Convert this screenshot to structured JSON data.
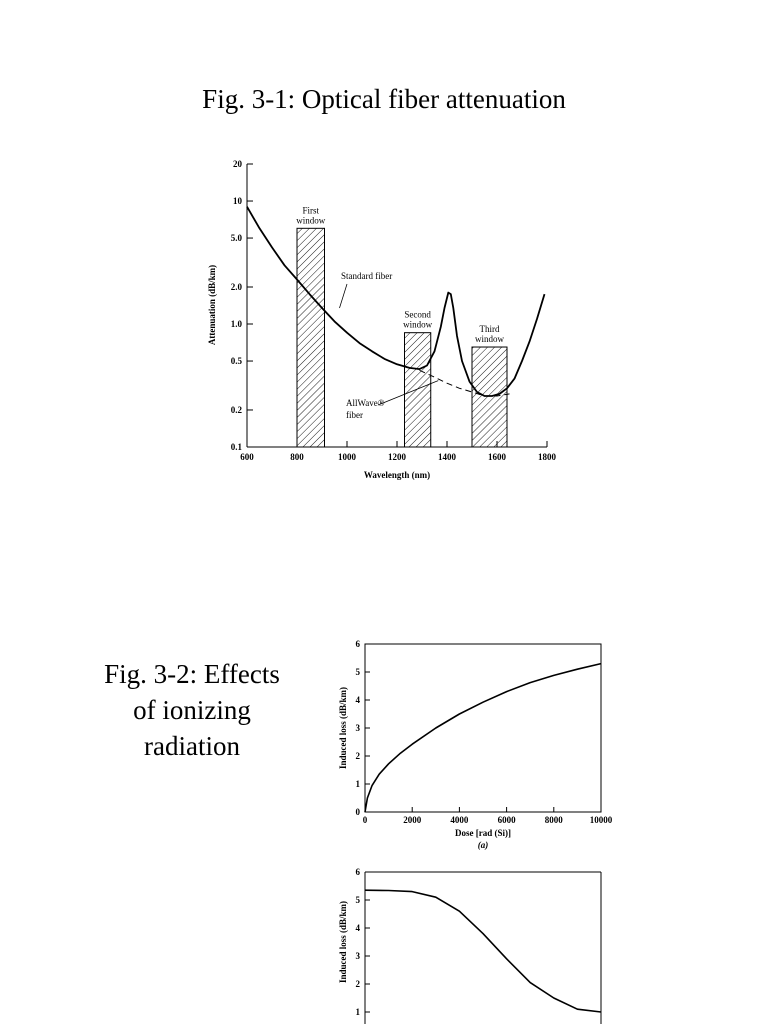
{
  "fig1": {
    "title": "Fig. 3-1: Optical fiber attenuation"
  },
  "fig2": {
    "title_lines": [
      "Fig. 3-2: Effects",
      "of ionizing",
      "radiation"
    ]
  },
  "chart_data": [
    {
      "type": "line",
      "xlabel": "Wavelength (nm)",
      "ylabel": "Attenuation (dB/km)",
      "xlim": [
        600,
        1800
      ],
      "ylim": [
        0.1,
        20
      ],
      "yscale": "log",
      "xticks": [
        600,
        800,
        1000,
        1200,
        1400,
        1600,
        1800
      ],
      "yticks": [
        0.1,
        0.2,
        0.5,
        1.0,
        2.0,
        5.0,
        10,
        20
      ],
      "ytick_labels": [
        "0.1",
        "0.2",
        "0.5",
        "1.0",
        "2.0",
        "5.0",
        "10",
        "20"
      ],
      "windows": [
        {
          "label": [
            "First",
            "window"
          ],
          "x0": 800,
          "x1": 910,
          "ytop": 6.0
        },
        {
          "label": [
            "Second",
            "window"
          ],
          "x0": 1230,
          "x1": 1335,
          "ytop": 0.85
        },
        {
          "label": [
            "Third",
            "window"
          ],
          "x0": 1500,
          "x1": 1640,
          "ytop": 0.65
        }
      ],
      "series": [
        {
          "name": "Standard fiber",
          "style": "solid",
          "x": [
            600,
            650,
            700,
            750,
            800,
            850,
            900,
            950,
            1000,
            1050,
            1100,
            1150,
            1200,
            1250,
            1290,
            1320,
            1350,
            1375,
            1390,
            1405,
            1415,
            1425,
            1440,
            1460,
            1490,
            1520,
            1550,
            1580,
            1610,
            1640,
            1670,
            1700,
            1730,
            1760,
            1790
          ],
          "y": [
            9.0,
            6.0,
            4.2,
            3.0,
            2.3,
            1.75,
            1.35,
            1.05,
            0.85,
            0.7,
            0.6,
            0.52,
            0.47,
            0.44,
            0.43,
            0.46,
            0.6,
            0.95,
            1.35,
            1.8,
            1.75,
            1.35,
            0.8,
            0.5,
            0.34,
            0.28,
            0.26,
            0.26,
            0.27,
            0.3,
            0.36,
            0.5,
            0.72,
            1.1,
            1.75
          ]
        },
        {
          "name": "AllWave® fiber",
          "style": "dashed",
          "x": [
            1290,
            1350,
            1400,
            1450,
            1500,
            1550,
            1600,
            1650
          ],
          "y": [
            0.42,
            0.37,
            0.33,
            0.3,
            0.28,
            0.26,
            0.26,
            0.27
          ]
        }
      ],
      "annotations": [
        {
          "text": [
            "Standard fiber"
          ],
          "target_x": 970,
          "target_y": 1.4
        },
        {
          "text": [
            "AllWave®",
            "fiber"
          ],
          "target_x": 1365,
          "target_y": 0.36
        }
      ]
    },
    {
      "type": "line",
      "xlabel": "Dose [rad (Si)]",
      "ylabel": "Induced loss (dB/km)",
      "sublabel": "(a)",
      "xlim": [
        0,
        10000
      ],
      "ylim": [
        0,
        6
      ],
      "xticks": [
        0,
        2000,
        4000,
        6000,
        8000,
        10000
      ],
      "yticks": [
        0,
        1,
        2,
        3,
        4,
        5,
        6
      ],
      "series": [
        {
          "name": "",
          "x": [
            0,
            100,
            300,
            600,
            1000,
            1500,
            2000,
            3000,
            4000,
            5000,
            6000,
            7000,
            8000,
            9000,
            10000
          ],
          "y": [
            0,
            0.5,
            0.95,
            1.35,
            1.72,
            2.1,
            2.42,
            3.0,
            3.5,
            3.92,
            4.3,
            4.62,
            4.88,
            5.1,
            5.3
          ]
        }
      ]
    },
    {
      "type": "line",
      "ylabel": "Induced loss (dB/km)",
      "ylim": [
        0,
        6
      ],
      "yticks": [
        1,
        2,
        3,
        4,
        5,
        6
      ],
      "xlim": [
        0,
        1
      ],
      "series": [
        {
          "name": "",
          "x": [
            0,
            0.1,
            0.2,
            0.3,
            0.4,
            0.5,
            0.6,
            0.7,
            0.8,
            0.9,
            1.0
          ],
          "y": [
            5.35,
            5.34,
            5.3,
            5.1,
            4.6,
            3.8,
            2.9,
            2.05,
            1.5,
            1.1,
            1.0
          ]
        }
      ]
    }
  ]
}
